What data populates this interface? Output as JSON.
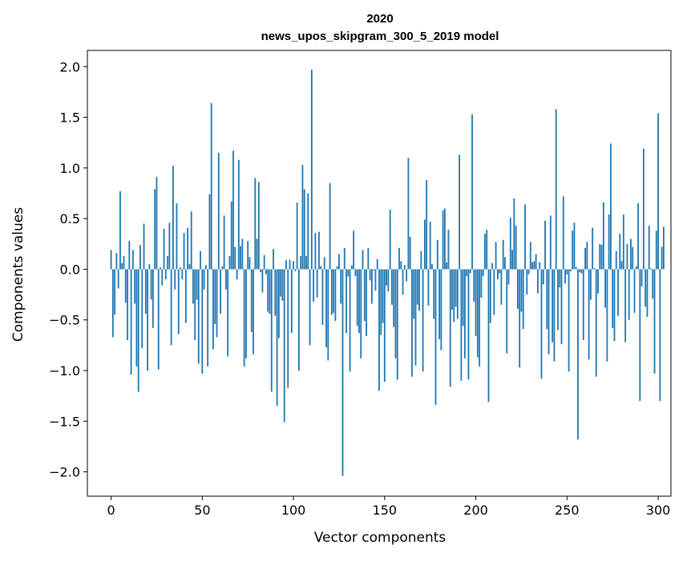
{
  "chart_data": {
    "type": "bar",
    "title": "2020",
    "subtitle": "news_upos_skipgram_300_5_2019 model",
    "xlabel": "Vector components",
    "ylabel": "Components values",
    "xlim": [
      -13,
      307
    ],
    "ylim": [
      -2.24,
      2.16
    ],
    "xticks": [
      0,
      50,
      100,
      150,
      200,
      250,
      300
    ],
    "xtick_labels": [
      "0",
      "50",
      "100",
      "150",
      "200",
      "250",
      "300"
    ],
    "yticks": [
      -2.0,
      -1.5,
      -1.0,
      -0.5,
      0.0,
      0.5,
      1.0,
      1.5,
      2.0
    ],
    "ytick_labels": [
      "−2.0",
      "−1.5",
      "−1.0",
      "−0.5",
      "0.0",
      "0.5",
      "1.0",
      "1.5",
      "2.0"
    ],
    "grid": false,
    "bar_color": "#1f77b4",
    "bar_width": 0.8,
    "values": [
      0.19,
      -0.67,
      -0.45,
      0.16,
      -0.19,
      0.77,
      0.06,
      0.13,
      -0.33,
      -0.7,
      0.28,
      -1.04,
      0.19,
      -0.34,
      -0.96,
      -1.21,
      0.24,
      -0.78,
      0.45,
      -0.44,
      -1.0,
      0.05,
      -0.3,
      -0.58,
      0.79,
      0.91,
      -0.99,
      0.02,
      -0.16,
      0.4,
      -0.1,
      0.13,
      0.46,
      -0.75,
      1.02,
      -0.2,
      0.65,
      -0.64,
      0.02,
      -0.1,
      0.36,
      -0.53,
      0.41,
      0.05,
      0.57,
      -0.34,
      -0.7,
      -0.3,
      -0.93,
      0.18,
      -1.03,
      -0.2,
      0.04,
      -0.96,
      0.74,
      1.64,
      -0.79,
      -0.54,
      -0.67,
      1.15,
      -0.44,
      0.03,
      0.53,
      -0.2,
      -0.86,
      0.13,
      0.67,
      1.17,
      0.22,
      -0.1,
      1.08,
      0.23,
      0.3,
      -0.96,
      -0.88,
      0.28,
      0.12,
      -0.62,
      -0.84,
      0.9,
      0.3,
      0.86,
      -0.03,
      -0.23,
      0.14,
      -0.05,
      -0.42,
      -0.44,
      -1.21,
      0.2,
      -0.46,
      -1.35,
      -0.68,
      -0.27,
      -0.31,
      -1.51,
      0.09,
      -1.17,
      0.09,
      -0.63,
      0.08,
      -0.02,
      0.66,
      -1.0,
      0.13,
      1.03,
      0.79,
      0.13,
      0.75,
      -0.75,
      1.97,
      -0.32,
      0.36,
      -0.28,
      0.37,
      0.03,
      -0.55,
      0.12,
      -0.77,
      -0.9,
      0.85,
      -0.45,
      -0.43,
      -0.51,
      0.03,
      0.15,
      -0.34,
      -2.04,
      0.21,
      -0.63,
      -0.07,
      -1.01,
      0.04,
      0.38,
      -0.07,
      -0.56,
      -0.63,
      -0.88,
      0.19,
      -0.51,
      -0.66,
      0.21,
      -0.11,
      -0.34,
      -0.01,
      -0.21,
      0.1,
      -1.2,
      -0.65,
      -0.53,
      -1.11,
      -0.16,
      -0.22,
      0.59,
      -0.35,
      -0.57,
      -0.88,
      -1.09,
      0.21,
      0.08,
      -0.25,
      0.04,
      -0.12,
      1.1,
      0.32,
      -1.06,
      -0.49,
      -0.95,
      -0.35,
      -0.41,
      0.18,
      -1.01,
      0.49,
      0.88,
      -0.36,
      0.47,
      0.05,
      -0.49,
      -1.34,
      0.29,
      -0.69,
      -0.8,
      0.58,
      0.6,
      0.07,
      0.39,
      -1.16,
      -0.4,
      -0.52,
      -0.37,
      -0.49,
      1.13,
      -1.1,
      -0.56,
      -0.88,
      -0.07,
      -1.09,
      -0.04,
      1.53,
      -0.32,
      -0.66,
      -0.87,
      -0.96,
      -0.28,
      -0.07,
      0.35,
      0.39,
      -1.31,
      -0.53,
      0.06,
      -0.45,
      0.27,
      -0.1,
      -0.04,
      -0.35,
      0.29,
      0.12,
      -0.83,
      -0.15,
      0.51,
      0.19,
      0.7,
      0.43,
      -0.39,
      -0.97,
      -0.42,
      -0.59,
      0.64,
      -0.25,
      -0.05,
      0.27,
      0.07,
      0.08,
      0.15,
      -0.24,
      0.07,
      -1.08,
      -0.15,
      0.48,
      -0.59,
      -0.84,
      0.53,
      -0.72,
      -0.91,
      1.58,
      -0.6,
      -0.18,
      -0.74,
      0.72,
      -0.14,
      -0.05,
      -1.01,
      -0.02,
      0.38,
      0.46,
      0.02,
      -1.68,
      -0.03,
      -0.04,
      -0.7,
      0.21,
      0.27,
      -0.89,
      -0.3,
      0.41,
      0.01,
      -1.06,
      -0.24,
      0.25,
      0.24,
      0.66,
      -0.38,
      -0.91,
      0.54,
      1.24,
      -0.58,
      -0.71,
      0.18,
      -0.46,
      0.35,
      0.08,
      0.54,
      -0.72,
      0.25,
      -0.5,
      0.3,
      0.22,
      -0.43,
      0.03,
      0.65,
      -1.3,
      -0.17,
      1.19,
      -0.37,
      -0.47,
      0.43,
      0.01,
      -0.29,
      -1.03,
      0.38,
      1.54,
      -1.3,
      0.22,
      0.42
    ]
  }
}
